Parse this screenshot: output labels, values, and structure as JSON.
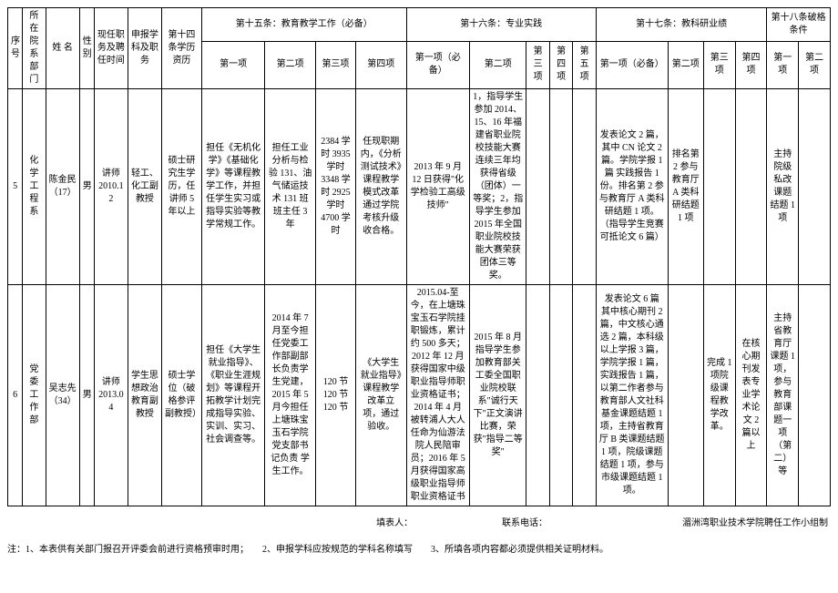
{
  "headers": {
    "row1": {
      "seq": "序号",
      "dept": "所在院系部门",
      "name": "姓 名",
      "gender": "性别",
      "curr_pos": "现任职务及聘任时间",
      "apply": "申报学科及职务",
      "art14": "第十四条学历资历",
      "art15": "第十五条：教育教学工作（必备）",
      "art16": "第十六条：专业实践",
      "art17": "第十七条：教科研业绩",
      "art18": "第十八条破格条件"
    },
    "row2": {
      "i1": "第一项",
      "i2": "第二项",
      "i3": "第三项",
      "i4": "第四项",
      "j1": "第一项（必备）",
      "j2": "第二项",
      "j3": "第三项",
      "j4": "第四项",
      "j5": "第五项",
      "k1": "第一项（必备）",
      "k2": "第二项",
      "k3": "第三项",
      "k4": "第四项",
      "l1": "第一项",
      "l2": "第二项"
    }
  },
  "rows": [
    {
      "seq": "5",
      "dept": "化学工程系",
      "name": "陈金民（17）",
      "gender": "男",
      "curr_pos": "讲师 2010.12",
      "apply": "轻工、化工副教授",
      "art14": "硕士研究生学历，任讲师 5 年以上",
      "a15_1": "担任《无机化学》《基础化学》等课程教学工作，并担任学生实习或指导实验等教学常规工作。",
      "a15_2": "担任工业分析与检验 131、油气储运技术 131 班班主任 3 年",
      "a15_3": "2384 学时 3935 学时 3348 学时 2925 学时 4700 学时",
      "a15_4": "任现职期内，《分析测试技术》课程教学模式改革通过学院考核升级收合格。",
      "a16_1": "2013 年 9 月 12 日获得\"化学检验工高级技师\"",
      "a16_2": "1，指导学生参加 2014、15、16 年福建省职业院校技能大赛连续三年均获得省级（团体）一等奖；2，指导学生参加 2015 年全国职业院校技能大赛荣获团体三等奖。",
      "a16_3": "",
      "a16_4": "",
      "a16_5": "",
      "a17_1": "发表论文 2 篇，其中 CN 论文 2 篇。学院学报 1 篇 实践报告 1 份。排名第 2 参与教育厅 A 类科研结题 1 项。（指导学生竞赛可抵论文 6 篇）",
      "a17_2": "排名第 2 参与教育厅 A 类科研结题 1 项",
      "a17_3": "",
      "a17_4": "",
      "a18_1": "主持院级私改课题结题 1 项",
      "a18_2": ""
    },
    {
      "seq": "6",
      "dept": "党委工作部",
      "name": "吴志先（34）",
      "gender": "男",
      "curr_pos": "讲师 2013.04",
      "apply": "学生思想政治教育副教授",
      "art14": "硕士学位（破格参评副教授）",
      "a15_1": "担任《大学生就业指导》、《职业生涯规划》等课程开拓教学计划完成指导实验、实训、实习、社会调查等。",
      "a15_2": "2014 年 7 月至今担任党委工作部副部长负责学生党建，2015 年 5 月今担任上塘珠宝玉石学院党支部书记负责 学生工作。",
      "a15_3": "120 节 120 节 120 节",
      "a15_4": "《大学生就业指导》课程教学改革立项，通过验收。",
      "a16_1": "2015.04-至今，在上塘珠宝玉石学院挂职锻炼，累计约 500 多天；2012 年 12 月获得国家中级职业指导师职业资格证书；2014 年 4 月被转浦人大人任命为仙游法院人民陪审员；2016 年 5 月获得国家高级职业指导师职业资格证书",
      "a16_2": "2015 年 8 月指导学生参加教育部关工委全国职业院校联系\"诚行天下\"正文演讲比赛，荣获\"指导二等奖\"",
      "a16_3": "",
      "a16_4": "",
      "a16_5": "",
      "a17_1": "发表论文 6 篇 其中核心期刊 2 篇，中文核心通选 2 篇，本科级以上学报 3 篇，学院学报 1 篇，实践报告 1 篇，以第二作者参与教育部人文社科基金课题结题 1 项，主持省教育厅 B 类课题结题 1 项，院级课题结题 1 项，参与市级课题结题 1 项。",
      "a17_2": "",
      "a17_3": "完成 1 项院级课程教学改革。",
      "a17_4": "在核心期刊发表专业学术论文 2 篇以上",
      "a18_1": "主持省教育厅课题 1 项，参与教育部课题一项（第二）等",
      "a18_2": ""
    }
  ],
  "footer": {
    "filler": "填表人：",
    "phone": "联系电话：",
    "org": "湄洲湾职业技术学院聘任工作小组制"
  },
  "note": "注：1、本表供有关部门报召开评委会前进行资格预审时用；　　2、申报学科应按规范的学科名称填写　　3、所填各项内容都必须提供相关证明材料。"
}
